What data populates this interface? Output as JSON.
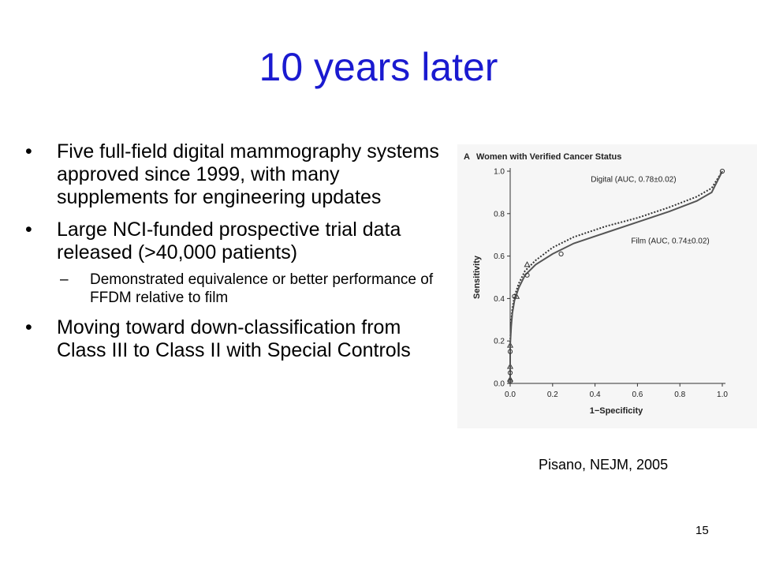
{
  "slide": {
    "title": "10 years later",
    "bullets": [
      {
        "text": "Five full-field digital mammography systems approved since 1999, with many supplements for engineering updates"
      },
      {
        "text": "Large NCI-funded prospective trial data released (>40,000 patients)",
        "sub": [
          "Demonstrated equivalence or better performance of FFDM relative to film"
        ]
      },
      {
        "text": "Moving toward down-classification from Class III to Class II with Special Controls"
      }
    ],
    "bullet_glyph": "•",
    "sub_glyph": "–",
    "caption": "Pisano, NEJM, 2005",
    "page_number": "15"
  },
  "chart_data": {
    "type": "line",
    "title": "Women with Verified Cancer Status",
    "panel_label": "A",
    "xlabel": "1−Specificity",
    "ylabel": "Sensitivity",
    "xlim": [
      0,
      1
    ],
    "ylim": [
      0,
      1
    ],
    "xticks": [
      "0.0",
      "0.2",
      "0.4",
      "0.6",
      "0.8",
      "1.0"
    ],
    "yticks": [
      "0.0",
      "0.2",
      "0.4",
      "0.6",
      "0.8",
      "1.0"
    ],
    "grid": false,
    "series": [
      {
        "name": "Digital (AUC, 0.78±0.02)",
        "style": "dotted",
        "color": "#333333",
        "x": [
          0.0,
          0.0,
          0.005,
          0.01,
          0.02,
          0.04,
          0.07,
          0.12,
          0.2,
          0.3,
          0.45,
          0.6,
          0.75,
          0.88,
          0.95,
          1.0
        ],
        "y": [
          0.0,
          0.2,
          0.29,
          0.35,
          0.41,
          0.47,
          0.53,
          0.58,
          0.64,
          0.69,
          0.74,
          0.78,
          0.83,
          0.88,
          0.92,
          1.0
        ],
        "markers": {
          "shape": "triangle",
          "x": [
            0.0,
            0.0,
            0.0,
            0.03,
            0.08
          ],
          "y": [
            0.02,
            0.08,
            0.18,
            0.41,
            0.56
          ]
        }
      },
      {
        "name": "Film (AUC, 0.74±0.02)",
        "style": "solid",
        "color": "#555555",
        "x": [
          0.0,
          0.0,
          0.005,
          0.01,
          0.02,
          0.04,
          0.07,
          0.12,
          0.2,
          0.3,
          0.45,
          0.6,
          0.75,
          0.88,
          0.95,
          1.0
        ],
        "y": [
          0.0,
          0.18,
          0.27,
          0.33,
          0.39,
          0.45,
          0.51,
          0.56,
          0.61,
          0.66,
          0.71,
          0.76,
          0.81,
          0.86,
          0.9,
          1.0
        ],
        "markers": {
          "shape": "circle",
          "x": [
            0.0,
            0.0,
            0.0,
            0.02,
            0.08,
            0.24,
            1.0
          ],
          "y": [
            0.01,
            0.05,
            0.15,
            0.41,
            0.51,
            0.61,
            1.0
          ]
        }
      }
    ]
  }
}
